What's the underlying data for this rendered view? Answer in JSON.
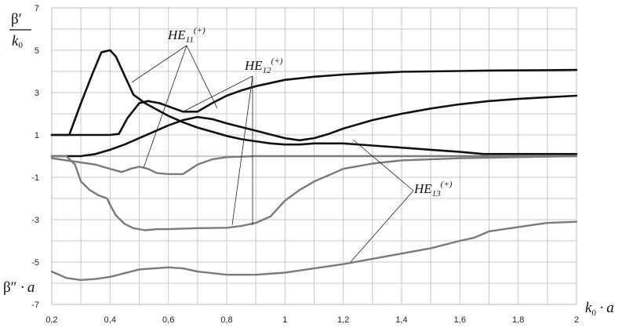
{
  "chart_data": {
    "type": "line",
    "xlim": [
      0.2,
      2.0
    ],
    "ylim": [
      -7,
      7
    ],
    "x_ticks": [
      0.2,
      0.4,
      0.6,
      0.8,
      1.0,
      1.2,
      1.4,
      1.6,
      1.8,
      2.0
    ],
    "x_tick_labels": [
      "0,2",
      "0,4",
      "0,6",
      "0,8",
      "1",
      "1,2",
      "1,4",
      "1,6",
      "1,8",
      "2"
    ],
    "y_ticks": [
      7,
      5,
      3,
      1,
      -1,
      -3,
      -5,
      -7
    ],
    "y_tick_labels": [
      "7",
      "5",
      "3",
      "1",
      "-1",
      "-3",
      "-5",
      "-7"
    ],
    "grid": true,
    "ylabel_top": {
      "numerator": "β′",
      "denominator": "k",
      "denominator_sub": "0"
    },
    "ylabel_bottom": {
      "beta": "β″",
      "a": "a"
    },
    "xlabel": {
      "k": "k",
      "k_sub": "0",
      "a": "a"
    },
    "annotations": [
      {
        "text": "HE",
        "sub": "11",
        "sup": "(+)"
      },
      {
        "text": "HE",
        "sub": "12",
        "sup": "(+)"
      },
      {
        "text": "HE",
        "sub": "13",
        "sup": "(+)"
      }
    ],
    "series": [
      {
        "color": "#111111",
        "width": 2.6,
        "x": [
          0.2,
          0.26,
          0.3,
          0.34,
          0.37,
          0.4,
          0.42,
          0.45,
          0.48,
          0.52,
          0.56,
          0.6,
          0.65,
          0.7,
          0.75,
          0.8,
          0.85,
          0.9,
          0.95,
          1.0,
          1.05,
          1.1,
          1.2,
          1.3,
          1.4,
          1.5,
          1.6,
          1.68,
          1.75,
          1.85,
          2.0
        ],
        "y": [
          1.0,
          1.0,
          2.5,
          3.9,
          4.9,
          5.0,
          4.7,
          3.8,
          2.9,
          2.5,
          2.2,
          1.9,
          1.6,
          1.35,
          1.15,
          0.95,
          0.8,
          0.7,
          0.6,
          0.55,
          0.55,
          0.6,
          0.6,
          0.5,
          0.4,
          0.3,
          0.2,
          0.1,
          0.1,
          0.1,
          0.1
        ]
      },
      {
        "color": "#111111",
        "width": 2.6,
        "x": [
          0.2,
          0.3,
          0.35,
          0.4,
          0.43,
          0.46,
          0.5,
          0.53,
          0.57,
          0.6,
          0.65,
          0.7,
          0.75,
          0.8,
          0.85,
          0.9,
          0.95,
          1.0,
          1.1,
          1.2,
          1.3,
          1.4,
          1.5,
          1.6,
          1.7,
          1.8,
          1.9,
          2.0
        ],
        "y": [
          1.0,
          1.0,
          1.0,
          1.0,
          1.05,
          1.8,
          2.5,
          2.6,
          2.5,
          2.35,
          2.1,
          2.1,
          2.5,
          2.85,
          3.1,
          3.3,
          3.45,
          3.6,
          3.75,
          3.85,
          3.92,
          3.98,
          4.0,
          4.02,
          4.04,
          4.05,
          4.06,
          4.07
        ]
      },
      {
        "color": "#111111",
        "width": 2.6,
        "x": [
          0.2,
          0.3,
          0.35,
          0.4,
          0.45,
          0.5,
          0.55,
          0.6,
          0.65,
          0.7,
          0.75,
          0.8,
          0.9,
          1.0,
          1.05,
          1.1,
          1.15,
          1.2,
          1.3,
          1.4,
          1.5,
          1.6,
          1.7,
          1.8,
          1.9,
          2.0
        ],
        "y": [
          0.0,
          0.0,
          0.1,
          0.3,
          0.55,
          0.85,
          1.15,
          1.45,
          1.7,
          1.85,
          1.75,
          1.55,
          1.2,
          0.85,
          0.75,
          0.85,
          1.05,
          1.3,
          1.7,
          2.0,
          2.25,
          2.45,
          2.6,
          2.7,
          2.78,
          2.85
        ]
      },
      {
        "color": "#7a7a7a",
        "width": 2.4,
        "x": [
          0.2,
          0.25,
          0.3,
          0.35,
          0.4,
          0.44,
          0.47,
          0.5,
          0.53,
          0.56,
          0.6,
          0.65,
          0.7,
          0.75,
          0.8,
          0.9,
          1.0,
          1.2,
          1.4,
          1.6,
          1.8,
          2.0
        ],
        "y": [
          -0.1,
          -0.2,
          -0.3,
          -0.4,
          -0.6,
          -0.75,
          -0.6,
          -0.5,
          -0.6,
          -0.8,
          -0.85,
          -0.85,
          -0.4,
          -0.15,
          -0.05,
          0.0,
          0.0,
          0.0,
          0.0,
          0.0,
          0.0,
          0.0
        ]
      },
      {
        "color": "#7a7a7a",
        "width": 2.4,
        "x": [
          0.2,
          0.25,
          0.28,
          0.3,
          0.33,
          0.36,
          0.39,
          0.4,
          0.42,
          0.45,
          0.48,
          0.52,
          0.56,
          0.6,
          0.7,
          0.8,
          0.85,
          0.9,
          0.95,
          1.0,
          1.05,
          1.1,
          1.15,
          1.2,
          1.3,
          1.4,
          1.6,
          1.8,
          2.0
        ],
        "y": [
          0.0,
          0.0,
          -0.4,
          -1.2,
          -1.6,
          -1.85,
          -2.0,
          -2.3,
          -2.8,
          -3.2,
          -3.4,
          -3.5,
          -3.45,
          -3.45,
          -3.4,
          -3.38,
          -3.3,
          -3.15,
          -2.85,
          -2.1,
          -1.6,
          -1.2,
          -0.9,
          -0.6,
          -0.35,
          -0.2,
          -0.1,
          -0.05,
          0.0
        ]
      },
      {
        "color": "#7a7a7a",
        "width": 2.4,
        "x": [
          0.2,
          0.25,
          0.3,
          0.35,
          0.4,
          0.5,
          0.6,
          0.65,
          0.7,
          0.8,
          0.9,
          1.0,
          1.1,
          1.2,
          1.3,
          1.4,
          1.5,
          1.6,
          1.65,
          1.7,
          1.8,
          1.9,
          2.0
        ],
        "y": [
          -5.45,
          -5.75,
          -5.85,
          -5.8,
          -5.7,
          -5.35,
          -5.25,
          -5.3,
          -5.45,
          -5.6,
          -5.6,
          -5.5,
          -5.3,
          -5.1,
          -4.85,
          -4.6,
          -4.35,
          -4.0,
          -3.85,
          -3.55,
          -3.35,
          -3.15,
          -3.1
        ]
      }
    ]
  }
}
